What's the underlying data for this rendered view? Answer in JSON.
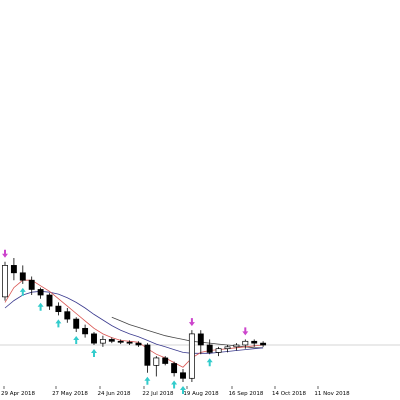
{
  "chart_data": {
    "type": "candlestick",
    "grid": false,
    "x_tick_labels": [
      "29 Apr 2018",
      "27 May 2018",
      "24 Jun 2018",
      "22 Jul 2018",
      "19 Aug 2018",
      "16 Sep 2018",
      "14 Oct 2018",
      "11 Nov 2018"
    ],
    "horizontal_line_level": 0.0,
    "candles": [
      {
        "open": 0.52,
        "high": 0.9,
        "low": 0.48,
        "close": 0.86
      },
      {
        "open": 0.86,
        "high": 0.94,
        "low": 0.7,
        "close": 0.78
      },
      {
        "open": 0.78,
        "high": 0.86,
        "low": 0.66,
        "close": 0.7
      },
      {
        "open": 0.7,
        "high": 0.74,
        "low": 0.54,
        "close": 0.6
      },
      {
        "open": 0.6,
        "high": 0.62,
        "low": 0.5,
        "close": 0.54
      },
      {
        "open": 0.54,
        "high": 0.56,
        "low": 0.38,
        "close": 0.42
      },
      {
        "open": 0.42,
        "high": 0.46,
        "low": 0.32,
        "close": 0.36
      },
      {
        "open": 0.36,
        "high": 0.4,
        "low": 0.24,
        "close": 0.28
      },
      {
        "open": 0.28,
        "high": 0.3,
        "low": 0.14,
        "close": 0.18
      },
      {
        "open": 0.18,
        "high": 0.22,
        "low": 0.08,
        "close": 0.12
      },
      {
        "open": 0.12,
        "high": 0.14,
        "low": 0.0,
        "close": 0.02
      },
      {
        "open": 0.02,
        "high": 0.1,
        "low": -0.02,
        "close": 0.06
      },
      {
        "open": 0.06,
        "high": 0.08,
        "low": 0.02,
        "close": 0.04
      },
      {
        "open": 0.04,
        "high": 0.06,
        "low": 0.01,
        "close": 0.03
      },
      {
        "open": 0.03,
        "high": 0.05,
        "low": 0.0,
        "close": 0.02
      },
      {
        "open": 0.02,
        "high": 0.04,
        "low": -0.02,
        "close": 0.0
      },
      {
        "open": 0.0,
        "high": 0.02,
        "low": -0.3,
        "close": -0.22
      },
      {
        "open": -0.22,
        "high": -0.12,
        "low": -0.34,
        "close": -0.14
      },
      {
        "open": -0.14,
        "high": -0.12,
        "low": -0.22,
        "close": -0.2
      },
      {
        "open": -0.2,
        "high": -0.18,
        "low": -0.34,
        "close": -0.3
      },
      {
        "open": -0.3,
        "high": -0.26,
        "low": -0.4,
        "close": -0.36
      },
      {
        "open": -0.36,
        "high": 0.16,
        "low": -0.4,
        "close": 0.12
      },
      {
        "open": 0.12,
        "high": 0.16,
        "low": -0.1,
        "close": 0.0
      },
      {
        "open": 0.0,
        "high": 0.06,
        "low": -0.1,
        "close": -0.08
      },
      {
        "open": -0.08,
        "high": -0.02,
        "low": -0.12,
        "close": -0.04
      },
      {
        "open": -0.04,
        "high": 0.0,
        "low": -0.08,
        "close": -0.02
      },
      {
        "open": -0.02,
        "high": 0.02,
        "low": -0.06,
        "close": 0.0
      },
      {
        "open": 0.0,
        "high": 0.06,
        "low": -0.04,
        "close": 0.04
      },
      {
        "open": 0.04,
        "high": 0.06,
        "low": -0.02,
        "close": 0.02
      },
      {
        "open": 0.02,
        "high": 0.04,
        "low": -0.02,
        "close": 0.0
      }
    ],
    "fast_ma": {
      "color": "#d9534f",
      "values": [
        0.46,
        0.62,
        0.7,
        0.7,
        0.64,
        0.58,
        0.5,
        0.42,
        0.34,
        0.26,
        0.18,
        0.12,
        0.08,
        0.05,
        0.04,
        0.03,
        -0.04,
        -0.1,
        -0.14,
        -0.19,
        -0.24,
        -0.14,
        -0.08,
        -0.06,
        -0.05,
        -0.04,
        -0.03,
        -0.02,
        -0.01,
        0.0
      ]
    },
    "slow_ma": {
      "color": "#3b3b8f",
      "values": [
        0.4,
        0.48,
        0.54,
        0.57,
        0.58,
        0.57,
        0.55,
        0.51,
        0.46,
        0.4,
        0.33,
        0.27,
        0.21,
        0.16,
        0.12,
        0.09,
        0.05,
        0.01,
        -0.02,
        -0.05,
        -0.08,
        -0.09,
        -0.09,
        -0.09,
        -0.08,
        -0.07,
        -0.06,
        -0.05,
        -0.04,
        -0.03
      ]
    },
    "third_line": {
      "color": "#444444",
      "values": [
        null,
        null,
        null,
        null,
        null,
        null,
        null,
        null,
        null,
        null,
        null,
        null,
        0.3,
        0.26,
        0.22,
        0.19,
        0.16,
        0.13,
        0.1,
        0.08,
        0.06,
        0.04,
        0.03,
        0.02,
        0.01,
        0.0,
        -0.01,
        -0.02,
        -0.03,
        -0.03
      ]
    },
    "arrows": [
      {
        "candle": 0,
        "dir": "down",
        "color": "#cc44cc"
      },
      {
        "candle": 2,
        "dir": "up",
        "color": "#33cccc"
      },
      {
        "candle": 4,
        "dir": "up",
        "color": "#33cccc"
      },
      {
        "candle": 6,
        "dir": "up",
        "color": "#33cccc"
      },
      {
        "candle": 8,
        "dir": "up",
        "color": "#33cccc"
      },
      {
        "candle": 10,
        "dir": "up",
        "color": "#33cccc"
      },
      {
        "candle": 16,
        "dir": "up",
        "color": "#33cccc"
      },
      {
        "candle": 19,
        "dir": "up",
        "color": "#33cccc"
      },
      {
        "candle": 20,
        "dir": "up",
        "color": "#33cccc"
      },
      {
        "candle": 21,
        "dir": "down",
        "color": "#cc44cc"
      },
      {
        "candle": 23,
        "dir": "up",
        "color": "#33cccc"
      },
      {
        "candle": 27,
        "dir": "down",
        "color": "#cc44cc"
      }
    ]
  }
}
